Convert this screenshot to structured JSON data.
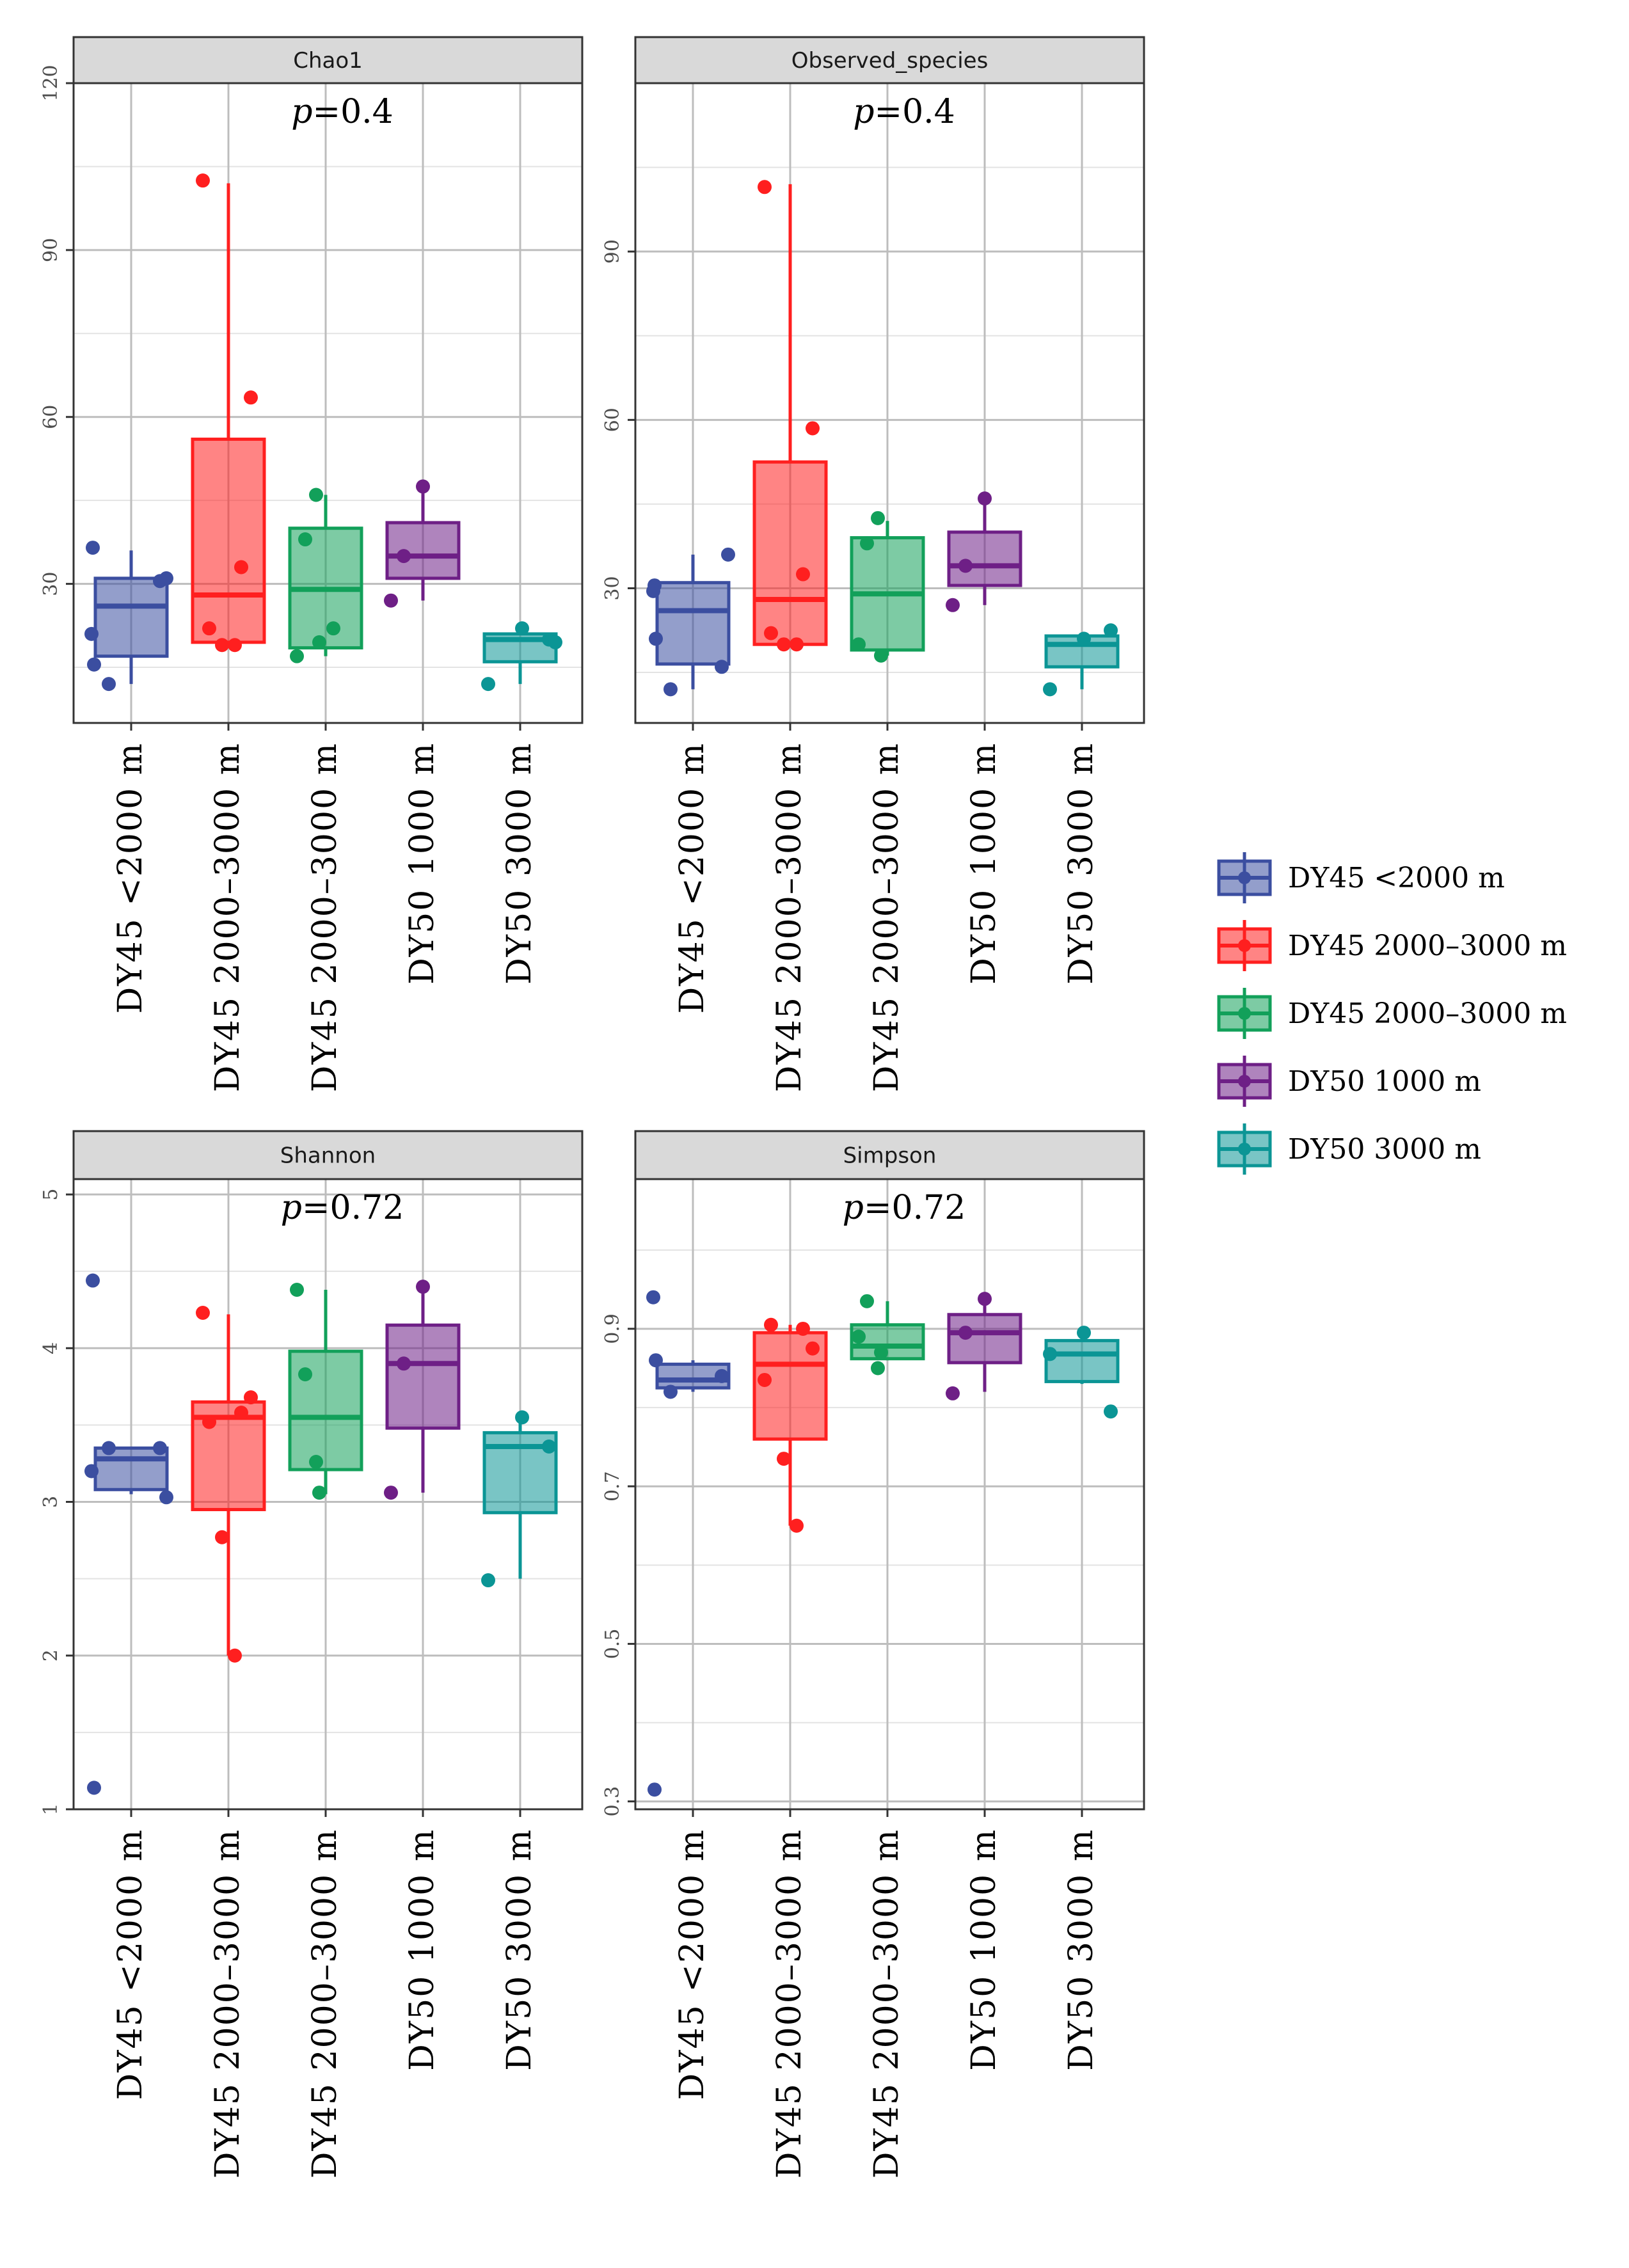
{
  "chart_data": {
    "type": "box",
    "groups": [
      "DY45 <2000 m",
      "DY45 2000–3000 m",
      "DY45 2000–3000 m",
      "DY50 1000 m",
      "DY50 3000 m"
    ],
    "colors": [
      "#3b4ea0",
      "#ff1f1f",
      "#12a05a",
      "#6e1f86",
      "#0b9595"
    ],
    "legend": {
      "position": "right",
      "entries": [
        "DY45 <2000 m",
        "DY45 2000–3000 m",
        "DY45 2000–3000 m",
        "DY50 1000 m",
        "DY50 3000 m"
      ]
    },
    "panels": [
      {
        "title": "Chao1",
        "p_label": "p",
        "p_value": "=0.4",
        "ylim": [
          5,
          120
        ],
        "yticks": [
          30,
          60,
          90,
          120
        ],
        "ytick_labels": [
          "30",
          "60",
          "90",
          "120"
        ],
        "xtick_labels": [
          "DY45 <2000 m",
          "DY45 2000–3000 m",
          "DY45 2000–3000 m",
          "DY50 1000 m",
          "DY50 3000 m"
        ],
        "boxes": [
          {
            "min": 12,
            "q1": 17,
            "median": 26,
            "q3": 31,
            "max": 36,
            "points": [
              36.5,
              21,
              15.5,
              12,
              30.5,
              31
            ]
          },
          {
            "min": 19,
            "q1": 19.5,
            "median": 28,
            "q3": 56,
            "max": 102,
            "points": [
              102.5,
              63.5,
              33,
              22,
              19,
              19
            ]
          },
          {
            "min": 17,
            "q1": 18.5,
            "median": 29,
            "q3": 40,
            "max": 46,
            "points": [
              17,
              38,
              46,
              19.5,
              22
            ]
          },
          {
            "min": 27,
            "q1": 31,
            "median": 35,
            "q3": 41,
            "max": 47,
            "points": [
              35,
              47.5,
              27
            ]
          },
          {
            "min": 12,
            "q1": 16,
            "median": 20,
            "q3": 21,
            "max": 22,
            "points": [
              12,
              22,
              20,
              19.5
            ]
          }
        ]
      },
      {
        "title": "Observed_species",
        "p_label": "p",
        "p_value": "=0.4",
        "ylim": [
          6,
          120
        ],
        "yticks": [
          30,
          60,
          90
        ],
        "ytick_labels": [
          "30",
          "60",
          "90"
        ],
        "xtick_labels": [
          "DY45 <2000 m",
          "DY45 2000–3000 m",
          "DY45 2000–3000 m",
          "DY50 1000 m",
          "DY50 3000 m"
        ],
        "boxes": [
          {
            "min": 12,
            "q1": 16.5,
            "median": 26,
            "q3": 31,
            "max": 36,
            "points": [
              30.5,
              29.5,
              21,
              12,
              16,
              36
            ]
          },
          {
            "min": 20,
            "q1": 20,
            "median": 28,
            "q3": 52.5,
            "max": 102,
            "points": [
              101.5,
              58.5,
              32.5,
              22,
              20,
              20
            ]
          },
          {
            "min": 18,
            "q1": 19,
            "median": 29,
            "q3": 39,
            "max": 42,
            "points": [
              20,
              38,
              42.5,
              18
            ]
          },
          {
            "min": 27,
            "q1": 30.5,
            "median": 34,
            "q3": 40,
            "max": 45.5,
            "points": [
              34,
              46,
              27
            ]
          },
          {
            "min": 12,
            "q1": 16,
            "median": 20,
            "q3": 21.5,
            "max": 22,
            "points": [
              12,
              21,
              22.5
            ]
          }
        ]
      },
      {
        "title": "Shannon",
        "p_label": "p",
        "p_value": "=0.72",
        "ylim": [
          1,
          5.1
        ],
        "yticks": [
          1,
          2,
          3,
          4,
          5
        ],
        "ytick_labels": [
          "1",
          "2",
          "3",
          "4",
          "5"
        ],
        "xtick_labels": [
          "DY45 <2000 m",
          "DY45 2000–3000 m",
          "DY45 2000–3000 m",
          "DY50 1000 m",
          "DY50 3000 m"
        ],
        "boxes": [
          {
            "min": 3.05,
            "q1": 3.08,
            "median": 3.28,
            "q3": 3.35,
            "max": 3.36,
            "points": [
              4.44,
              3.2,
              1.14,
              3.35,
              3.35,
              3.03
            ]
          },
          {
            "min": 2.0,
            "q1": 2.95,
            "median": 3.55,
            "q3": 3.65,
            "max": 4.22,
            "points": [
              4.23,
              3.68,
              3.58,
              3.52,
              2.77,
              2.0
            ]
          },
          {
            "min": 3.05,
            "q1": 3.21,
            "median": 3.55,
            "q3": 3.98,
            "max": 4.38,
            "points": [
              4.38,
              3.83,
              3.26,
              3.06
            ]
          },
          {
            "min": 3.06,
            "q1": 3.48,
            "median": 3.9,
            "q3": 4.15,
            "max": 4.4,
            "points": [
              3.9,
              4.4,
              3.06
            ]
          },
          {
            "min": 2.5,
            "q1": 2.93,
            "median": 3.36,
            "q3": 3.45,
            "max": 3.56,
            "points": [
              2.49,
              3.55,
              3.36
            ]
          }
        ]
      },
      {
        "title": "Simpson",
        "p_label": "p",
        "p_value": "=0.72",
        "ylim": [
          0.29,
          1.09
        ],
        "yticks": [
          0.3,
          0.5,
          0.7,
          0.9
        ],
        "ytick_labels": [
          "0.3",
          "0.5",
          "0.7",
          "0.9"
        ],
        "xtick_labels": [
          "DY45 <2000 m",
          "DY45 2000–3000 m",
          "DY45 2000–3000 m",
          "DY50 1000 m",
          "DY50 3000 m"
        ],
        "boxes": [
          {
            "min": 0.82,
            "q1": 0.825,
            "median": 0.835,
            "q3": 0.855,
            "max": 0.86,
            "points": [
              0.315,
              0.94,
              0.86,
              0.82,
              0.84
            ]
          },
          {
            "min": 0.65,
            "q1": 0.76,
            "median": 0.855,
            "q3": 0.895,
            "max": 0.905,
            "points": [
              0.835,
              0.875,
              0.9,
              0.905,
              0.735,
              0.65
            ]
          },
          {
            "min": 0.86,
            "q1": 0.862,
            "median": 0.878,
            "q3": 0.905,
            "max": 0.935,
            "points": [
              0.89,
              0.935,
              0.85,
              0.87
            ]
          },
          {
            "min": 0.82,
            "q1": 0.857,
            "median": 0.895,
            "q3": 0.918,
            "max": 0.935,
            "points": [
              0.895,
              0.938,
              0.818
            ]
          },
          {
            "min": 0.83,
            "q1": 0.833,
            "median": 0.868,
            "q3": 0.885,
            "max": 0.89,
            "points": [
              0.868,
              0.895,
              0.795
            ]
          }
        ]
      }
    ]
  }
}
